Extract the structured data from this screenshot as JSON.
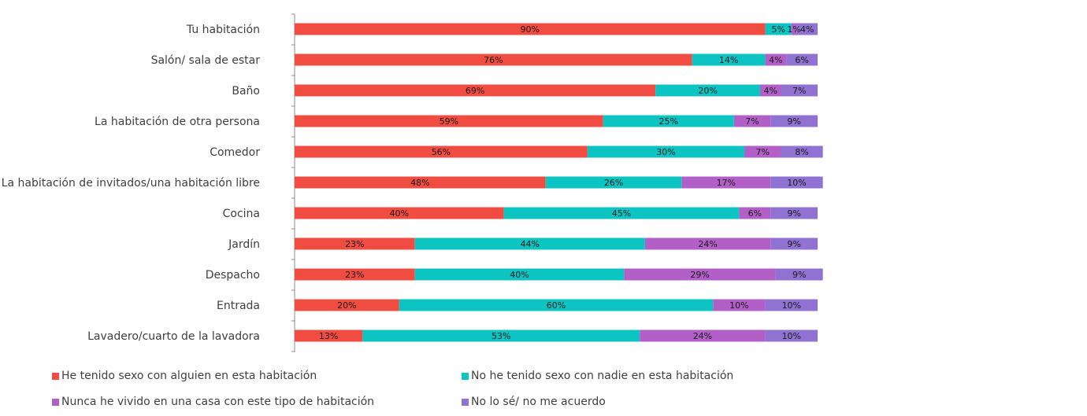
{
  "chart_data": {
    "type": "bar",
    "orientation": "horizontal",
    "stacked": true,
    "categories": [
      "Tu habitación",
      "Salón/ sala de estar",
      "Baño",
      "La habitación de otra persona",
      "Comedor",
      "La habitación de invitados/una habitación libre",
      "Cocina",
      "Jardín",
      "Despacho",
      "Entrada",
      "Lavadero/cuarto de la lavadora"
    ],
    "series": [
      {
        "name": "He tenido sexo con alguien en esta habitación",
        "color": "#f04c42",
        "values": [
          90,
          76,
          69,
          59,
          56,
          48,
          40,
          23,
          23,
          20,
          13
        ]
      },
      {
        "name": "No he tenido sexo con nadie en esta habitación",
        "color": "#0cc5c2",
        "values": [
          5,
          14,
          20,
          25,
          30,
          26,
          45,
          44,
          40,
          60,
          53
        ]
      },
      {
        "name": "Nunca he vivido en una casa con este tipo de habitación",
        "color": "#b25fc7",
        "values": [
          1,
          4,
          4,
          7,
          7,
          17,
          6,
          24,
          29,
          10,
          24
        ]
      },
      {
        "name": "No lo sé/ no me acuerdo",
        "color": "#8f72d2",
        "values": [
          4,
          6,
          7,
          9,
          8,
          10,
          9,
          9,
          9,
          10,
          10
        ]
      }
    ],
    "value_suffix": "%",
    "xlim": [
      0,
      100
    ],
    "legend_position": "bottom",
    "grid": false
  }
}
